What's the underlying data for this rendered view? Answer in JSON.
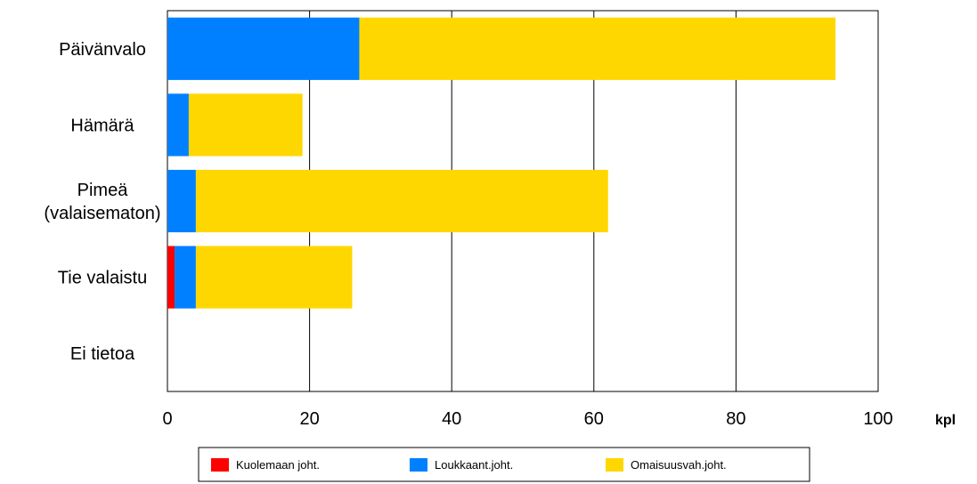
{
  "chart_data": {
    "type": "bar",
    "orientation": "horizontal",
    "stacked": true,
    "categories": [
      "Päivänvalo",
      "Hämärä",
      "Pimeä\n(valaisematon)",
      "Tie valaistu",
      "Ei tietoa"
    ],
    "series": [
      {
        "name": "Kuolemaan joht.",
        "color": "#ff0000",
        "values": [
          0,
          0,
          0,
          1,
          0
        ]
      },
      {
        "name": "Loukkaant.joht.",
        "color": "#0080ff",
        "values": [
          27,
          3,
          4,
          3,
          0
        ]
      },
      {
        "name": "Omaisuusvah.joht.",
        "color": "#ffd700",
        "values": [
          67,
          16,
          58,
          22,
          0
        ]
      }
    ],
    "xlim": [
      0,
      100
    ],
    "xticks": [
      0,
      20,
      40,
      60,
      80,
      100
    ],
    "xlabel": "kpl",
    "grid": "vertical",
    "legend_position": "bottom"
  }
}
